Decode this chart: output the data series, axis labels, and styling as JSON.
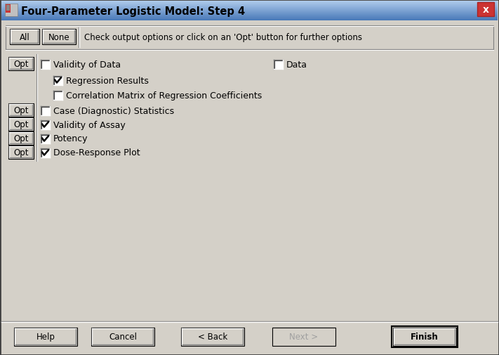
{
  "title": "Four-Parameter Logistic Model: Step 4",
  "title_bar_bg": "#b8cfe8",
  "title_text_color": "#000000",
  "body_bg": "#d4d0c8",
  "content_bg": "#e8e4e0",
  "instruction": "Check output options or click on an 'Opt' button for further options",
  "rows": [
    {
      "opt": true,
      "checked": false,
      "label": "Validity of Data",
      "extra_check": true,
      "extra_label": "Data",
      "extra_checked": false,
      "indent": 0
    },
    {
      "opt": false,
      "checked": true,
      "label": "Regression Results",
      "extra_check": false,
      "extra_label": "",
      "extra_checked": false,
      "indent": 1
    },
    {
      "opt": false,
      "checked": false,
      "label": "Correlation Matrix of Regression Coefficients",
      "extra_check": false,
      "extra_label": "",
      "extra_checked": false,
      "indent": 1
    },
    {
      "opt": true,
      "checked": false,
      "label": "Case (Diagnostic) Statistics",
      "extra_check": false,
      "extra_label": "",
      "extra_checked": false,
      "indent": 0
    },
    {
      "opt": true,
      "checked": true,
      "label": "Validity of Assay",
      "extra_check": false,
      "extra_label": "",
      "extra_checked": false,
      "indent": 0
    },
    {
      "opt": true,
      "checked": true,
      "label": "Potency",
      "extra_check": false,
      "extra_label": "",
      "extra_checked": false,
      "indent": 0
    },
    {
      "opt": true,
      "checked": true,
      "label": "Dose-Response Plot",
      "extra_check": false,
      "extra_label": "",
      "extra_checked": false,
      "indent": 0
    }
  ],
  "bottom_buttons": [
    "Help",
    "Cancel",
    "< Back",
    "Next >",
    "Finish"
  ],
  "bottom_buttons_enabled": [
    true,
    true,
    true,
    false,
    true
  ],
  "figsize": [
    7.11,
    5.06
  ],
  "dpi": 100
}
